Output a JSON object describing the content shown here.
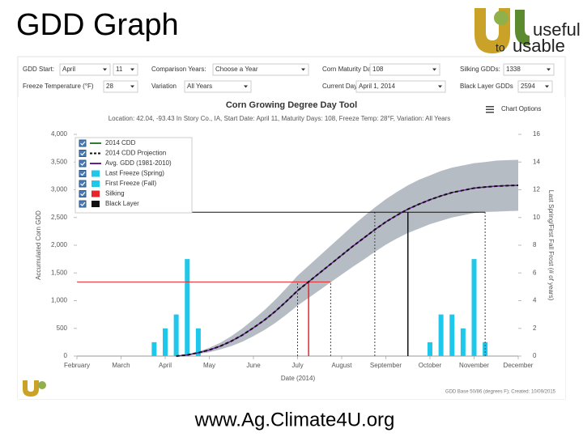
{
  "slide": {
    "title": "GDD Graph",
    "footer": "www.Ag.Climate4U.org",
    "logo": {
      "top": "useful",
      "middle": "to",
      "bottom": "usable"
    }
  },
  "controls": [
    {
      "label": "GDD Start:",
      "values": [
        "April",
        "11"
      ]
    },
    {
      "label": "Comparison Years:",
      "values": [
        "Choose a Year"
      ]
    },
    {
      "label": "Corn Maturity Days:",
      "values": [
        "108"
      ]
    },
    {
      "label": "Silking GDDs:",
      "values": [
        "1338"
      ]
    },
    {
      "label": "Freeze Temperature (°F)",
      "values": [
        "28"
      ]
    },
    {
      "label": "Variation",
      "values": [
        "All Years"
      ]
    },
    {
      "label": "Current Day",
      "values": [
        "April 1, 2014"
      ]
    },
    {
      "label": "Black Layer GDDs",
      "values": [
        "2594"
      ]
    }
  ],
  "chart_data": {
    "type": "line",
    "title": "Corn Growing Degree Day Tool",
    "subtitle": "Location: 42.04, -93.43 In Story Co., IA, Start Date: April 11, Maturity Days: 108, Freeze Temp: 28°F, Variation: All Years",
    "options_label": "Chart Options",
    "y_label": "Accumulated Corn GDD",
    "y2_label": "Last Spring/First Fall Frost (# of years)",
    "x_label": "Date (2014)",
    "credit": "GDD Base 50/86 (degrees F); Created: 10/09/2015",
    "categories": [
      "February",
      null,
      null,
      null,
      "March",
      null,
      null,
      null,
      "April",
      null,
      null,
      null,
      "May",
      null,
      null,
      null,
      "June",
      null,
      null,
      null,
      "July",
      null,
      null,
      null,
      "August",
      null,
      null,
      null,
      "September",
      null,
      null,
      null,
      "October",
      null,
      null,
      null,
      "November",
      null,
      null,
      null,
      "December"
    ],
    "ylim": [
      0,
      4000
    ],
    "yticks": [
      0,
      500,
      {
        "value": 1000,
        "label": "1,000"
      },
      {
        "value": 1500,
        "label": "1,500"
      },
      {
        "value": 2000,
        "label": "2,000"
      },
      {
        "value": 2500,
        "label": "2,500"
      },
      {
        "value": 3000,
        "label": "3,000"
      },
      {
        "value": 3500,
        "label": "3,500"
      },
      {
        "value": 4000,
        "label": "4,000"
      }
    ],
    "y2lim": [
      0,
      16
    ],
    "y2ticks": [
      0,
      2,
      4,
      6,
      8,
      10,
      12,
      14,
      16
    ],
    "band": {
      "color": "#a9b0ba",
      "high": [
        null,
        null,
        null,
        null,
        null,
        null,
        null,
        null,
        null,
        0,
        30,
        80,
        150,
        240,
        360,
        500,
        660,
        830,
        1020,
        1230,
        1450,
        1630,
        1810,
        1990,
        2170,
        2350,
        2520,
        2680,
        2830,
        2960,
        3080,
        3180,
        3260,
        3340,
        3400,
        3440,
        3480,
        3500,
        3525,
        3535,
        3540
      ],
      "low": [
        null,
        null,
        null,
        null,
        null,
        null,
        null,
        null,
        null,
        0,
        10,
        40,
        70,
        120,
        180,
        260,
        360,
        470,
        600,
        750,
        910,
        1050,
        1190,
        1330,
        1470,
        1610,
        1740,
        1880,
        2010,
        2120,
        2220,
        2300,
        2380,
        2440,
        2500,
        2540,
        2580,
        2600,
        2605,
        2615,
        2620
      ]
    },
    "series": [
      {
        "name": "2014 CDD",
        "type": "line",
        "color": "#2e7d32",
        "values": [
          null,
          null,
          null,
          null,
          null,
          null,
          null,
          null,
          null,
          null,
          null,
          null,
          null,
          null,
          null,
          null,
          null,
          null,
          null,
          null,
          null,
          null,
          null,
          null,
          null,
          null,
          null,
          null,
          null,
          null,
          null,
          null,
          null,
          null,
          null,
          null,
          null,
          null,
          null,
          null,
          null
        ]
      },
      {
        "name": "2014 CDD Projection",
        "type": "dashed",
        "color": "#111111",
        "values": [
          null,
          null,
          null,
          null,
          null,
          null,
          null,
          null,
          null,
          0,
          20,
          60,
          110,
          180,
          270,
          380,
          510,
          650,
          810,
          990,
          1180,
          1340,
          1500,
          1660,
          1820,
          1980,
          2130,
          2280,
          2420,
          2540,
          2650,
          2740,
          2820,
          2890,
          2950,
          2990,
          3030,
          3050,
          3065,
          3075,
          3080
        ]
      },
      {
        "name": "Avg. GDD (1981-2010)",
        "type": "line",
        "color": "#6a1b9a",
        "values": [
          null,
          null,
          null,
          null,
          null,
          null,
          null,
          null,
          null,
          0,
          20,
          60,
          110,
          180,
          270,
          380,
          510,
          650,
          810,
          990,
          1180,
          1340,
          1500,
          1660,
          1820,
          1980,
          2130,
          2280,
          2420,
          2540,
          2650,
          2740,
          2820,
          2890,
          2950,
          2990,
          3030,
          3050,
          3065,
          3075,
          3080
        ]
      },
      {
        "name": "Last Freeze (Spring)",
        "type": "bar",
        "axis": "y2",
        "color": "#1ec8ea",
        "values": [
          null,
          null,
          null,
          null,
          null,
          null,
          null,
          1,
          2,
          3,
          7,
          2,
          null,
          null,
          null,
          null,
          null,
          null,
          null,
          null,
          null,
          null,
          null,
          null,
          null,
          null,
          null,
          null,
          null,
          null,
          null,
          null,
          null,
          null,
          null,
          null,
          null,
          null,
          null,
          null,
          null
        ]
      },
      {
        "name": "First Freeze (Fall)",
        "type": "bar",
        "axis": "y2",
        "color": "#1ec8ea",
        "values": [
          null,
          null,
          null,
          null,
          null,
          null,
          null,
          null,
          null,
          null,
          null,
          null,
          null,
          null,
          null,
          null,
          null,
          null,
          null,
          null,
          null,
          null,
          null,
          null,
          null,
          null,
          null,
          null,
          null,
          null,
          null,
          null,
          1,
          3,
          3,
          2,
          7,
          1,
          null,
          null,
          null
        ]
      },
      {
        "name": "Silking",
        "type": "marker",
        "color": "#e8262a",
        "values": [
          null,
          null,
          null,
          null,
          null,
          null,
          null,
          null,
          null,
          null,
          null,
          null,
          null,
          null,
          null,
          null,
          null,
          null,
          null,
          null,
          null,
          1338,
          null,
          null,
          null,
          null,
          null,
          null,
          null,
          null,
          null,
          null,
          null,
          null,
          null,
          null,
          null,
          null,
          null,
          null,
          null
        ],
        "range_values": [
          null,
          null,
          null,
          null,
          null,
          null,
          null,
          null,
          null,
          null,
          null,
          null,
          null,
          null,
          null,
          null,
          null,
          null,
          null,
          null,
          1338,
          null,
          null,
          1338,
          null,
          null,
          null,
          null,
          null,
          null,
          null,
          null,
          null,
          null,
          null,
          null,
          null,
          null,
          null,
          null,
          null
        ]
      },
      {
        "name": "Black Layer",
        "type": "marker",
        "color": "#111111",
        "values": [
          null,
          null,
          null,
          null,
          null,
          null,
          null,
          null,
          null,
          null,
          null,
          null,
          null,
          null,
          null,
          null,
          null,
          null,
          null,
          null,
          null,
          null,
          null,
          null,
          null,
          null,
          null,
          null,
          null,
          null,
          2594,
          null,
          null,
          null,
          null,
          null,
          null,
          null,
          null,
          null,
          null
        ],
        "range_values": [
          null,
          null,
          null,
          null,
          null,
          null,
          null,
          null,
          null,
          null,
          null,
          null,
          null,
          null,
          null,
          null,
          null,
          null,
          null,
          null,
          null,
          null,
          null,
          null,
          null,
          null,
          null,
          2594,
          null,
          null,
          null,
          null,
          null,
          null,
          null,
          null,
          null,
          2594,
          null,
          null,
          null
        ]
      }
    ],
    "grid": false
  }
}
